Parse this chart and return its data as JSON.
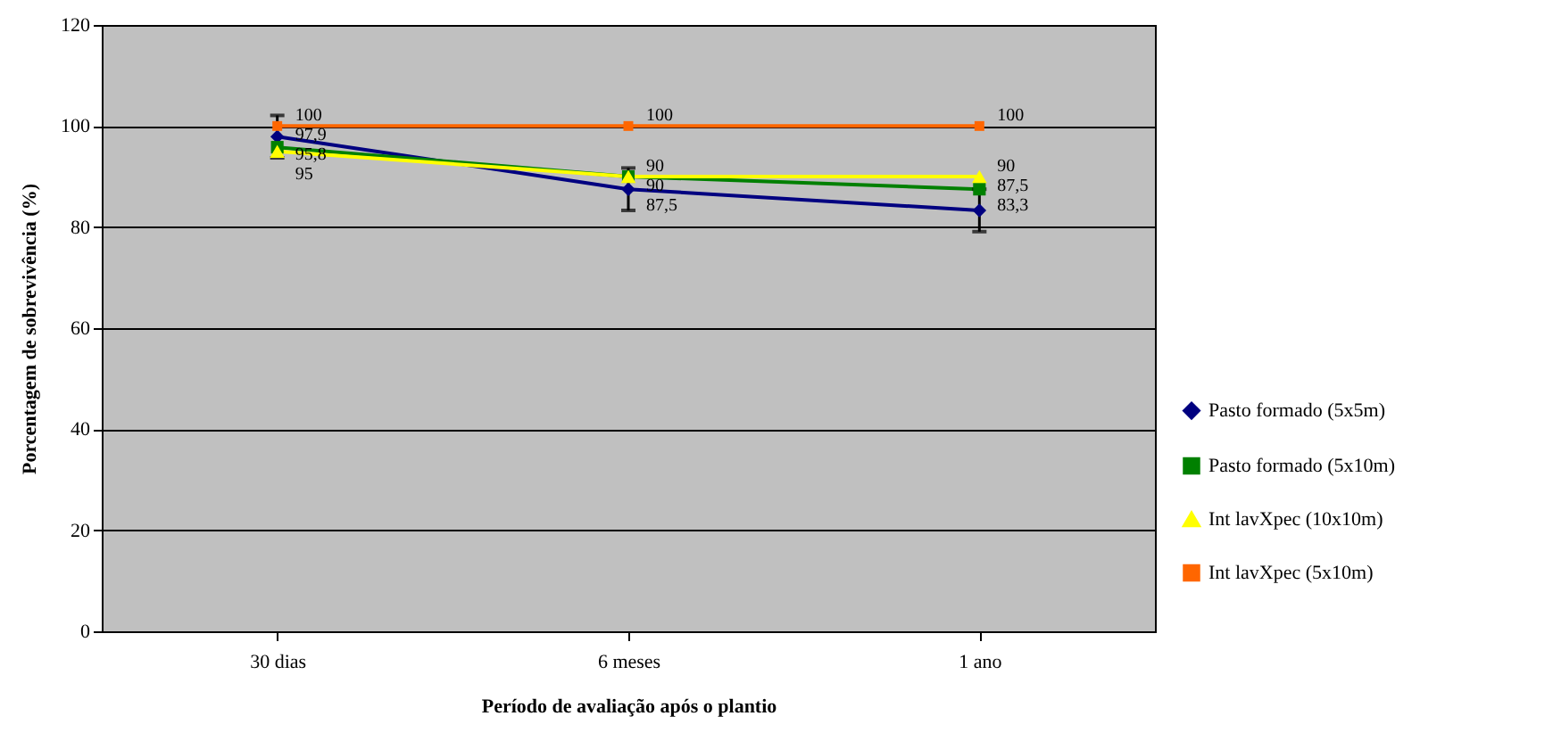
{
  "chart_data": {
    "type": "line",
    "xlabel": "Período de avaliação após o plantio",
    "ylabel": "Porcentagem de sobrevivência (%)",
    "categories": [
      "30 dias",
      "6 meses",
      "1 ano"
    ],
    "series": [
      {
        "name": "Pasto formado (5x5m)",
        "color": "#000080",
        "marker": "diamond",
        "values": [
          97.9,
          87.5,
          83.3
        ],
        "value_labels": [
          "97,9",
          "87,5",
          "83,3"
        ],
        "errors": [
          4.2,
          4.2,
          4.2
        ]
      },
      {
        "name": "Pasto formado (5x10m)",
        "color": "#008000",
        "marker": "square",
        "values": [
          95.8,
          90,
          87.5
        ],
        "value_labels": [
          "95,8",
          "90",
          "87,5"
        ]
      },
      {
        "name": "Int lavXpec (10x10m)",
        "color": "#ffff00",
        "marker": "triangle",
        "values": [
          95,
          90,
          90
        ],
        "value_labels": [
          "95",
          "90",
          "90"
        ]
      },
      {
        "name": "Int lavXpec (5x10m)",
        "color": "#ff6600",
        "marker": "square",
        "values": [
          100,
          100,
          100
        ],
        "value_labels": [
          "100",
          "100",
          "100"
        ]
      }
    ],
    "ylim": [
      0,
      120
    ],
    "yticks": [
      0,
      20,
      40,
      60,
      80,
      100,
      120
    ],
    "grid": "y",
    "legend": "right"
  }
}
